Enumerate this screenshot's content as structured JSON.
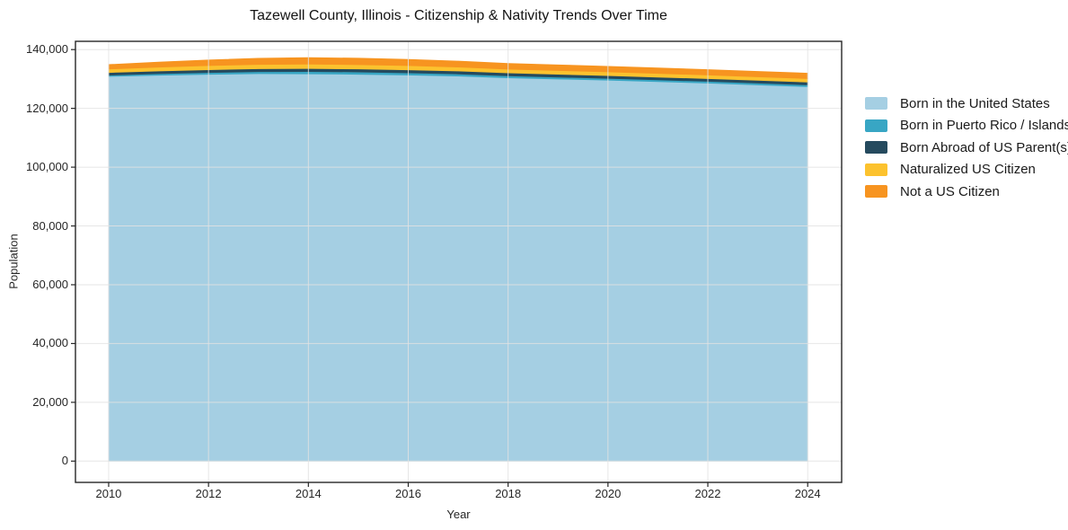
{
  "title": "Tazewell County, Illinois - Citizenship & Nativity Trends Over Time",
  "chart_data": {
    "type": "area",
    "stacked": true,
    "title": "Tazewell County, Illinois - Citizenship & Nativity Trends Over Time",
    "xlabel": "Year",
    "ylabel": "Population",
    "x": [
      2010,
      2011,
      2012,
      2013,
      2014,
      2015,
      2016,
      2017,
      2018,
      2019,
      2020,
      2021,
      2022,
      2023,
      2024
    ],
    "series": [
      {
        "name": "Born in the United States",
        "color": "#a5cfe3",
        "values": [
          130900,
          131300,
          131600,
          131800,
          131750,
          131600,
          131350,
          131000,
          130400,
          130000,
          129600,
          129100,
          128600,
          128000,
          127400
        ]
      },
      {
        "name": "Born in Puerto Rico / Islands",
        "color": "#38a6c4",
        "values": [
          400,
          500,
          600,
          700,
          800,
          800,
          750,
          720,
          700,
          650,
          620,
          600,
          600,
          600,
          600
        ]
      },
      {
        "name": "Born Abroad of US Parent(s)",
        "color": "#254a5e",
        "values": [
          900,
          930,
          960,
          990,
          1010,
          1010,
          1000,
          1000,
          1000,
          980,
          960,
          950,
          950,
          950,
          950
        ]
      },
      {
        "name": "Naturalized US Citizen",
        "color": "#fcc22e",
        "values": [
          1200,
          1300,
          1400,
          1450,
          1500,
          1480,
          1450,
          1350,
          1250,
          1250,
          1250,
          1250,
          1200,
          1200,
          1200
        ]
      },
      {
        "name": "Not a US Citizen",
        "color": "#f79420",
        "values": [
          1500,
          1700,
          1900,
          2100,
          2200,
          2180,
          2100,
          2000,
          1930,
          1900,
          1870,
          1850,
          1820,
          1800,
          1800
        ]
      }
    ],
    "xticks": [
      2010,
      2012,
      2014,
      2016,
      2018,
      2020,
      2022,
      2024
    ],
    "xtick_labels": [
      "2010",
      "2012",
      "2014",
      "2016",
      "2018",
      "2020",
      "2022",
      "2024"
    ],
    "yticks": [
      0,
      20000,
      40000,
      60000,
      80000,
      100000,
      120000,
      140000
    ],
    "ytick_labels": [
      "0",
      "20,000",
      "40,000",
      "60,000",
      "80,000",
      "100,000",
      "120,000",
      "140,000"
    ],
    "xlim": [
      2009.335,
      2024.68
    ],
    "ylim": [
      -7240,
      142810
    ],
    "grid": true,
    "grid_color": "#e2e2e2",
    "axis_color": "#262626",
    "legend_position": "right"
  }
}
